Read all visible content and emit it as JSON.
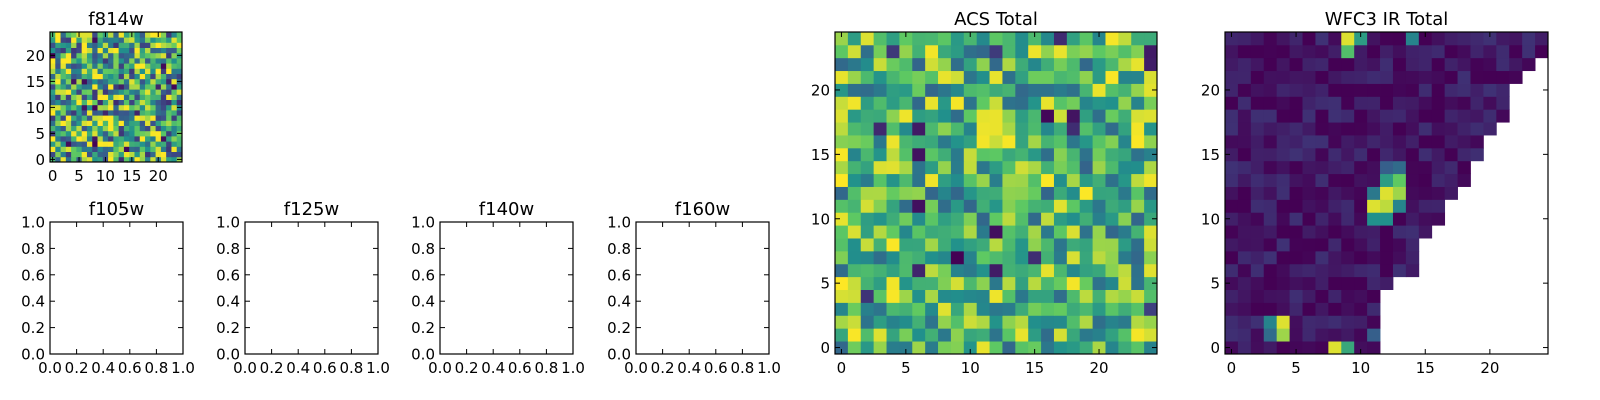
{
  "chart_data": [
    {
      "id": "f814w",
      "type": "heatmap",
      "title": "f814w",
      "xlim": [
        -0.5,
        24.5
      ],
      "ylim": [
        -0.5,
        24.5
      ],
      "xticks": [
        0,
        5,
        10,
        15,
        20
      ],
      "yticks": [
        0,
        5,
        10,
        15,
        20
      ],
      "xticklabels": [
        "0",
        "5",
        "10",
        "15",
        "20"
      ],
      "yticklabels": [
        "0",
        "5",
        "10",
        "15",
        "20"
      ],
      "grid_size": [
        25,
        25
      ],
      "colormap": [
        "#440154",
        "#3b528b",
        "#21918c",
        "#5ec962",
        "#fde725"
      ],
      "generator": {
        "kind": "noise",
        "seed": 814,
        "mean": 0.62,
        "spread": 0.45
      }
    },
    {
      "id": "f105w",
      "type": "heatmap",
      "title": "f105w",
      "empty": true,
      "xlim": [
        0,
        1
      ],
      "ylim": [
        0,
        1
      ],
      "xticks": [
        0,
        0.2,
        0.4,
        0.6,
        0.8,
        1.0
      ],
      "yticks": [
        0,
        0.2,
        0.4,
        0.6,
        0.8,
        1.0
      ],
      "xticklabels": [
        "0.0",
        "0.2",
        "0.4",
        "0.6",
        "0.8",
        "1.0"
      ],
      "yticklabels": [
        "0.0",
        "0.2",
        "0.4",
        "0.6",
        "0.8",
        "1.0"
      ]
    },
    {
      "id": "f125w",
      "type": "heatmap",
      "title": "f125w",
      "empty": true,
      "xlim": [
        0,
        1
      ],
      "ylim": [
        0,
        1
      ],
      "xticks": [
        0,
        0.2,
        0.4,
        0.6,
        0.8,
        1.0
      ],
      "yticks": [
        0,
        0.2,
        0.4,
        0.6,
        0.8,
        1.0
      ],
      "xticklabels": [
        "0.0",
        "0.2",
        "0.4",
        "0.6",
        "0.8",
        "1.0"
      ],
      "yticklabels": [
        "0.0",
        "0.2",
        "0.4",
        "0.6",
        "0.8",
        "1.0"
      ]
    },
    {
      "id": "f140w",
      "type": "heatmap",
      "title": "f140w",
      "empty": true,
      "xlim": [
        0,
        1
      ],
      "ylim": [
        0,
        1
      ],
      "xticks": [
        0,
        0.2,
        0.4,
        0.6,
        0.8,
        1.0
      ],
      "yticks": [
        0,
        0.2,
        0.4,
        0.6,
        0.8,
        1.0
      ],
      "xticklabels": [
        "0.0",
        "0.2",
        "0.4",
        "0.6",
        "0.8",
        "1.0"
      ],
      "yticklabels": [
        "0.0",
        "0.2",
        "0.4",
        "0.6",
        "0.8",
        "1.0"
      ]
    },
    {
      "id": "f160w",
      "type": "heatmap",
      "title": "f160w",
      "empty": true,
      "xlim": [
        0,
        1
      ],
      "ylim": [
        0,
        1
      ],
      "xticks": [
        0,
        0.2,
        0.4,
        0.6,
        0.8,
        1.0
      ],
      "yticks": [
        0,
        0.2,
        0.4,
        0.6,
        0.8,
        1.0
      ],
      "xticklabels": [
        "0.0",
        "0.2",
        "0.4",
        "0.6",
        "0.8",
        "1.0"
      ],
      "yticklabels": [
        "0.0",
        "0.2",
        "0.4",
        "0.6",
        "0.8",
        "1.0"
      ]
    },
    {
      "id": "acs-total",
      "type": "heatmap",
      "title": "ACS Total",
      "xlim": [
        -0.5,
        24.5
      ],
      "ylim": [
        -0.5,
        24.5
      ],
      "xticks": [
        0,
        5,
        10,
        15,
        20
      ],
      "yticks": [
        0,
        5,
        10,
        15,
        20
      ],
      "xticklabels": [
        "0",
        "5",
        "10",
        "15",
        "20"
      ],
      "yticklabels": [
        "0",
        "5",
        "10",
        "15",
        "20"
      ],
      "grid_size": [
        25,
        25
      ],
      "colormap": [
        "#440154",
        "#3b528b",
        "#21918c",
        "#5ec962",
        "#fde725"
      ],
      "generator": {
        "kind": "noise",
        "seed": 2024,
        "mean": 0.66,
        "spread": 0.34
      }
    },
    {
      "id": "wfc3-ir-total",
      "type": "heatmap",
      "title": "WFC3 IR Total",
      "xlim": [
        -0.5,
        24.5
      ],
      "ylim": [
        -0.5,
        24.5
      ],
      "xticks": [
        0,
        5,
        10,
        15,
        20
      ],
      "yticks": [
        0,
        5,
        10,
        15,
        20
      ],
      "xticklabels": [
        "0",
        "5",
        "10",
        "15",
        "20"
      ],
      "yticklabels": [
        "0",
        "5",
        "10",
        "15",
        "20"
      ],
      "grid_size": [
        25,
        25
      ],
      "colormap": [
        "#440154",
        "#3b528b",
        "#21918c",
        "#5ec962",
        "#fde725"
      ],
      "generator": {
        "kind": "noise",
        "seed": 160,
        "mean": 0.06,
        "spread": 0.09
      },
      "coverage_last_column": [
        11,
        11,
        11,
        11,
        11,
        12,
        14,
        14,
        14,
        15,
        16,
        16,
        17,
        18,
        18,
        19,
        19,
        20,
        21,
        21,
        21,
        22,
        23,
        24,
        24
      ],
      "hot_pixels": [
        {
          "x": 4,
          "y": 2,
          "v": 0.95
        },
        {
          "x": 4,
          "y": 1,
          "v": 0.85
        },
        {
          "x": 3,
          "y": 2,
          "v": 0.45
        },
        {
          "x": 3,
          "y": 1,
          "v": 0.35
        },
        {
          "x": 8,
          "y": 0,
          "v": 0.95
        },
        {
          "x": 9,
          "y": 0,
          "v": 0.6
        },
        {
          "x": 11,
          "y": 1,
          "v": 0.3
        },
        {
          "x": 12,
          "y": 12,
          "v": 0.95
        },
        {
          "x": 11,
          "y": 11,
          "v": 0.95
        },
        {
          "x": 12,
          "y": 11,
          "v": 0.9
        },
        {
          "x": 13,
          "y": 12,
          "v": 0.85
        },
        {
          "x": 13,
          "y": 13,
          "v": 0.75
        },
        {
          "x": 12,
          "y": 13,
          "v": 0.55
        },
        {
          "x": 13,
          "y": 11,
          "v": 0.45
        },
        {
          "x": 12,
          "y": 10,
          "v": 0.5
        },
        {
          "x": 11,
          "y": 10,
          "v": 0.5
        },
        {
          "x": 11,
          "y": 12,
          "v": 0.4
        },
        {
          "x": 13,
          "y": 14,
          "v": 0.35
        },
        {
          "x": 12,
          "y": 14,
          "v": 0.3
        },
        {
          "x": 9,
          "y": 24,
          "v": 0.95
        },
        {
          "x": 9,
          "y": 23,
          "v": 0.7
        },
        {
          "x": 10,
          "y": 24,
          "v": 0.55
        },
        {
          "x": 14,
          "y": 24,
          "v": 0.45
        }
      ]
    }
  ]
}
